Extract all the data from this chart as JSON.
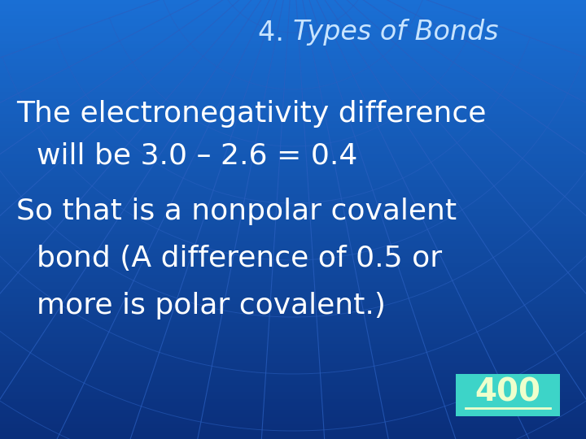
{
  "title_prefix": "4. ",
  "title_italic": "Types of Bonds",
  "body_lines": [
    [
      "The electronegativity difference",
      false
    ],
    [
      "  will be 3.0 – 2.6 = 0.4",
      false
    ],
    [
      "So that is a nonpolar covalent",
      false
    ],
    [
      "  bond (A difference of 0.5 or",
      false
    ],
    [
      "  more is polar covalent.)",
      false
    ]
  ],
  "badge_text": "400",
  "bg_color_light": "#1a6fd4",
  "bg_color_dark": "#0a2e7a",
  "title_color": "#c8e4ff",
  "body_color": "#ffffff",
  "badge_bg": "#3dd4c8",
  "badge_text_color": "#eeffcc",
  "badge_underline_color": "#eeffcc",
  "grid_line_color": "#2a5fc0",
  "title_fontsize": 24,
  "body_fontsize": 26,
  "badge_fontsize": 28
}
